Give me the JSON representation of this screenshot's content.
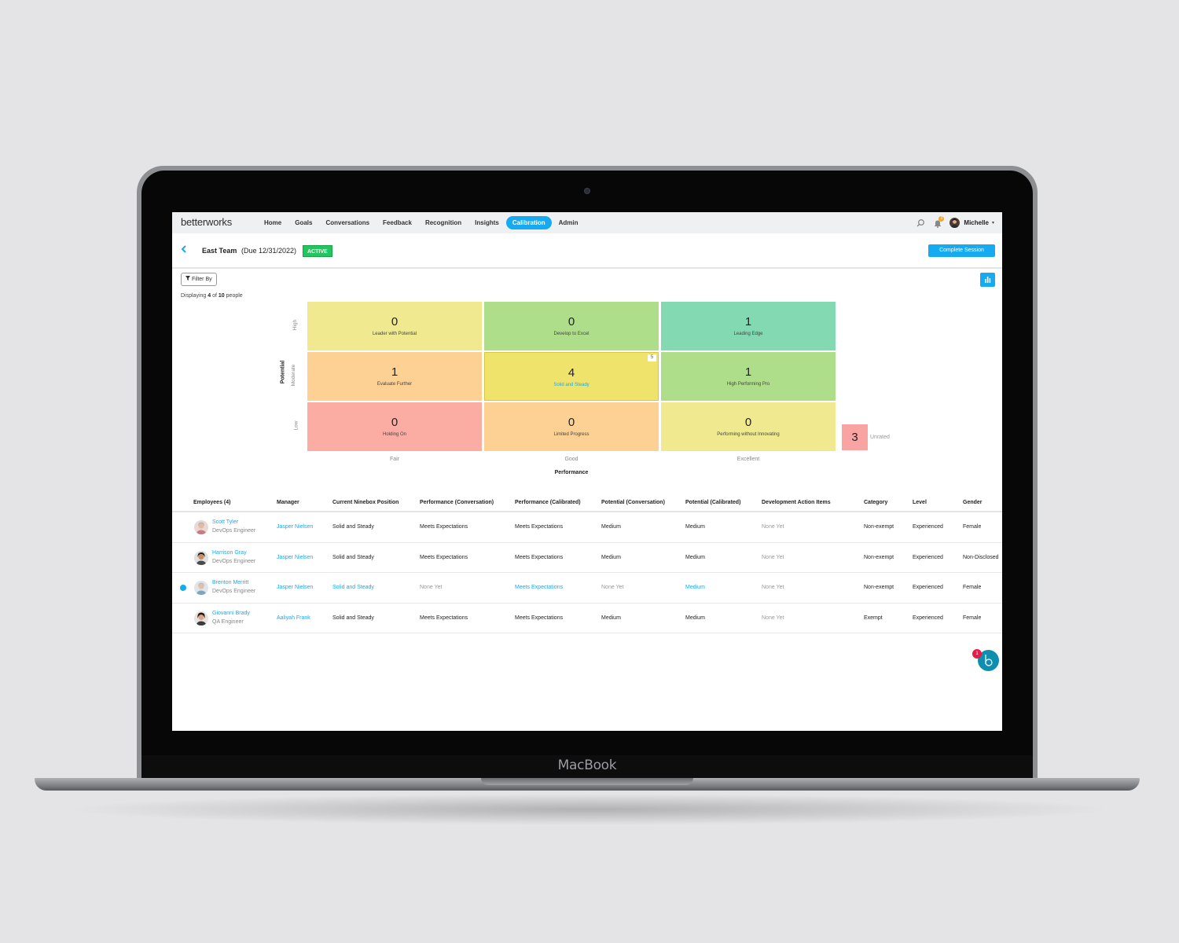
{
  "device": {
    "brand": "MacBook"
  },
  "app": {
    "logo": "betterworks",
    "nav": [
      "Home",
      "Goals",
      "Conversations",
      "Feedback",
      "Recognition",
      "Insights",
      "Calibration",
      "Admin"
    ],
    "active_nav": "Calibration",
    "user": {
      "name": "Michelle",
      "notification_count": "3"
    }
  },
  "session": {
    "team": "East Team",
    "due": "(Due 12/31/2022)",
    "status": "ACTIVE",
    "complete_label": "Complete Session"
  },
  "filter": {
    "label": "Filter By",
    "displaying_prefix": "Displaying",
    "displayed": "4",
    "of": "of",
    "total": "10",
    "suffix": "people"
  },
  "ninebox": {
    "y_title": "Potential",
    "x_title": "Performance",
    "y_levels": [
      "High",
      "Moderate",
      "Low"
    ],
    "x_levels": [
      "Fair",
      "Good",
      "Excellent"
    ],
    "cells": [
      {
        "count": "0",
        "label": "Leader with Potential",
        "color": "#f0e98f"
      },
      {
        "count": "0",
        "label": "Develop to Excel",
        "color": "#aede8a"
      },
      {
        "count": "1",
        "label": "Leading Edge",
        "color": "#83d9b1"
      },
      {
        "count": "1",
        "label": "Evaluate Further",
        "color": "#fdd193"
      },
      {
        "count": "4",
        "label": "Solid and Steady",
        "color": "#f0e36b",
        "selected": true,
        "flag": "5"
      },
      {
        "count": "1",
        "label": "High Performing Pro",
        "color": "#aede8a"
      },
      {
        "count": "0",
        "label": "Holding On",
        "color": "#fbaca3"
      },
      {
        "count": "0",
        "label": "Limited Progress",
        "color": "#fdd193"
      },
      {
        "count": "0",
        "label": "Performing without Innovating",
        "color": "#f0e98f"
      }
    ],
    "unrated": {
      "count": "3",
      "label": "Unrated"
    }
  },
  "table": {
    "headers": [
      "Employees (4)",
      "Manager",
      "Current Ninebox Position",
      "Performance (Conversation)",
      "Performance (Calibrated)",
      "Potential (Conversation)",
      "Potential (Calibrated)",
      "Development Action Items",
      "Category",
      "Level",
      "Gender"
    ],
    "rows": [
      {
        "name": "Scott Tyler",
        "role": "DevOps Engineer",
        "manager": "Jasper Nielsen",
        "ninebox": "Solid and Steady",
        "perf_conv": "Meets Expectations",
        "perf_cal": "Meets Expectations",
        "pot_conv": "Medium",
        "pot_cal": "Medium",
        "dev_items": "None Yet",
        "category": "Non-exempt",
        "level": "Experienced",
        "gender": "Female"
      },
      {
        "name": "Harrison Gray",
        "role": "DevOps Engineer",
        "manager": "Jasper Nielsen",
        "ninebox": "Solid and Steady",
        "perf_conv": "Meets Expectations",
        "perf_cal": "Meets Expectations",
        "pot_conv": "Medium",
        "pot_cal": "Medium",
        "dev_items": "None Yet",
        "category": "Non-exempt",
        "level": "Experienced",
        "gender": "Non-Disclosed"
      },
      {
        "name": "Brenton Merritt",
        "role": "DevOps Engineer",
        "manager": "Jasper Nielsen",
        "ninebox": "Solid and Steady",
        "perf_conv": "None Yet",
        "perf_cal": "Meets Expectations",
        "pot_conv": "None Yet",
        "pot_cal": "Medium",
        "dev_items": "None Yet",
        "category": "Non-exempt",
        "level": "Experienced",
        "gender": "Female"
      },
      {
        "name": "Giovanni Brady",
        "role": "QA Engineer",
        "manager": "Aaliyah Frank",
        "ninebox": "Solid and Steady",
        "perf_conv": "Meets Expectations",
        "perf_cal": "Meets Expectations",
        "pot_conv": "Medium",
        "pot_cal": "Medium",
        "dev_items": "None Yet",
        "category": "Exempt",
        "level": "Experienced",
        "gender": "Female"
      }
    ]
  },
  "assistant": {
    "badge": "1"
  }
}
